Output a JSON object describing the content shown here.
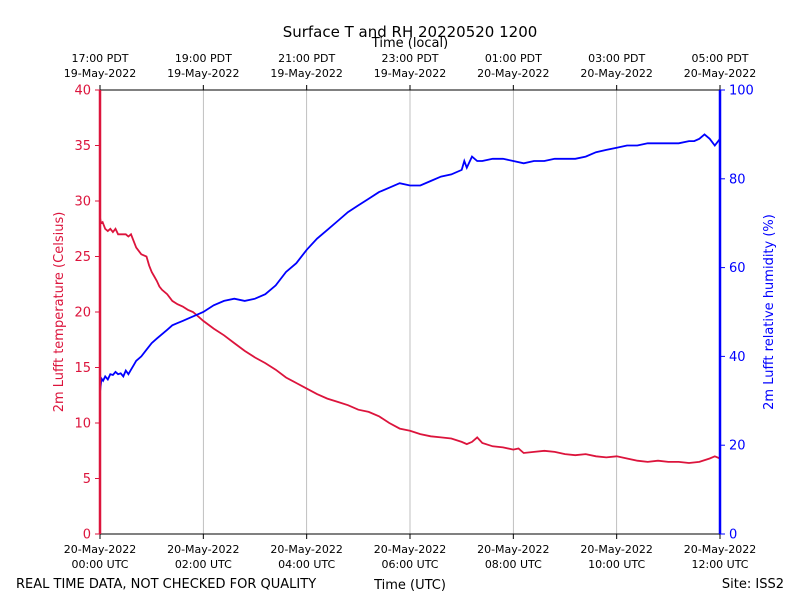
{
  "chart_data": {
    "type": "line",
    "title": "Surface T and RH 20220520 1200",
    "top_axis_label": "Time (local)",
    "bottom_axis_label": "Time (UTC)",
    "left_axis_label": "2m Lufft temperature (Celsius)",
    "right_axis_label": "2m Lufft relative humidity (%)",
    "footer_left": "REAL TIME DATA, NOT CHECKED FOR QUALITY",
    "footer_right": "Site: ISS2",
    "x_range_hours": [
      0,
      12
    ],
    "x_unit": "hours since 20-May-2022 00:00 UTC",
    "ylim_left": [
      0,
      40
    ],
    "ylim_right": [
      0,
      100
    ],
    "grid": "vertical at bottom ticks",
    "bottom_ticks": [
      {
        "x": 0,
        "line1": "20-May-2022",
        "line2": "00:00 UTC"
      },
      {
        "x": 2,
        "line1": "20-May-2022",
        "line2": "02:00 UTC"
      },
      {
        "x": 4,
        "line1": "20-May-2022",
        "line2": "04:00 UTC"
      },
      {
        "x": 6,
        "line1": "20-May-2022",
        "line2": "06:00 UTC"
      },
      {
        "x": 8,
        "line1": "20-May-2022",
        "line2": "08:00 UTC"
      },
      {
        "x": 10,
        "line1": "20-May-2022",
        "line2": "10:00 UTC"
      },
      {
        "x": 12,
        "line1": "20-May-2022",
        "line2": "12:00 UTC"
      }
    ],
    "top_ticks": [
      {
        "x": 0,
        "line1": "17:00 PDT",
        "line2": "19-May-2022"
      },
      {
        "x": 2,
        "line1": "19:00 PDT",
        "line2": "19-May-2022"
      },
      {
        "x": 4,
        "line1": "21:00 PDT",
        "line2": "19-May-2022"
      },
      {
        "x": 6,
        "line1": "23:00 PDT",
        "line2": "19-May-2022"
      },
      {
        "x": 8,
        "line1": "01:00 PDT",
        "line2": "20-May-2022"
      },
      {
        "x": 10,
        "line1": "03:00 PDT",
        "line2": "20-May-2022"
      },
      {
        "x": 12,
        "line1": "05:00 PDT",
        "line2": "20-May-2022"
      }
    ],
    "left_ticks": [
      "0",
      "5",
      "10",
      "15",
      "20",
      "25",
      "30",
      "35",
      "40"
    ],
    "right_ticks": [
      "0",
      "20",
      "40",
      "60",
      "80",
      "100"
    ],
    "colors": {
      "temperature": "#dc143c",
      "humidity": "#0000ff",
      "grid": "#b0b0b0",
      "frame": "#000000"
    },
    "series": [
      {
        "name": "2m Lufft temperature (Celsius)",
        "axis": "left",
        "x": [
          0.0,
          0.02,
          0.05,
          0.1,
          0.15,
          0.2,
          0.25,
          0.3,
          0.35,
          0.4,
          0.5,
          0.55,
          0.6,
          0.7,
          0.8,
          0.9,
          0.95,
          1.0,
          1.05,
          1.1,
          1.15,
          1.2,
          1.3,
          1.4,
          1.5,
          1.6,
          1.7,
          1.8,
          1.9,
          2.0,
          2.2,
          2.4,
          2.6,
          2.8,
          3.0,
          3.2,
          3.4,
          3.6,
          3.8,
          4.0,
          4.2,
          4.4,
          4.6,
          4.8,
          5.0,
          5.2,
          5.4,
          5.6,
          5.8,
          6.0,
          6.2,
          6.4,
          6.6,
          6.8,
          7.0,
          7.1,
          7.2,
          7.3,
          7.4,
          7.6,
          7.8,
          8.0,
          8.1,
          8.2,
          8.4,
          8.6,
          8.8,
          9.0,
          9.2,
          9.4,
          9.6,
          9.8,
          10.0,
          10.2,
          10.4,
          10.6,
          10.8,
          11.0,
          11.2,
          11.4,
          11.6,
          11.8,
          11.9,
          12.0
        ],
        "values": [
          28.5,
          28.0,
          28.1,
          27.5,
          27.3,
          27.5,
          27.2,
          27.5,
          27.0,
          27.0,
          27.0,
          26.8,
          27.0,
          25.8,
          25.2,
          25.0,
          24.2,
          23.6,
          23.2,
          22.8,
          22.3,
          22.0,
          21.6,
          21.0,
          20.7,
          20.5,
          20.2,
          20.0,
          19.6,
          19.2,
          18.5,
          17.9,
          17.2,
          16.5,
          15.9,
          15.4,
          14.8,
          14.1,
          13.6,
          13.1,
          12.6,
          12.2,
          11.9,
          11.6,
          11.2,
          11.0,
          10.6,
          10.0,
          9.5,
          9.3,
          9.0,
          8.8,
          8.7,
          8.6,
          8.3,
          8.1,
          8.3,
          8.7,
          8.2,
          7.9,
          7.8,
          7.6,
          7.7,
          7.3,
          7.4,
          7.5,
          7.4,
          7.2,
          7.1,
          7.2,
          7.0,
          6.9,
          7.0,
          6.8,
          6.6,
          6.5,
          6.6,
          6.5,
          6.5,
          6.4,
          6.5,
          6.8,
          7.0,
          6.8
        ]
      },
      {
        "name": "2m Lufft relative humidity (%)",
        "axis": "right",
        "x": [
          0.0,
          0.03,
          0.06,
          0.1,
          0.15,
          0.2,
          0.25,
          0.3,
          0.35,
          0.4,
          0.45,
          0.5,
          0.55,
          0.6,
          0.65,
          0.7,
          0.8,
          0.9,
          1.0,
          1.1,
          1.2,
          1.3,
          1.4,
          1.5,
          1.6,
          1.7,
          1.8,
          1.9,
          2.0,
          2.2,
          2.4,
          2.6,
          2.8,
          3.0,
          3.2,
          3.4,
          3.6,
          3.8,
          4.0,
          4.2,
          4.4,
          4.6,
          4.8,
          5.0,
          5.2,
          5.4,
          5.6,
          5.8,
          6.0,
          6.2,
          6.4,
          6.6,
          6.8,
          7.0,
          7.05,
          7.1,
          7.2,
          7.3,
          7.4,
          7.6,
          7.8,
          8.0,
          8.2,
          8.4,
          8.6,
          8.8,
          9.0,
          9.2,
          9.4,
          9.6,
          9.8,
          10.0,
          10.2,
          10.4,
          10.6,
          10.8,
          11.0,
          11.2,
          11.4,
          11.5,
          11.6,
          11.7,
          11.8,
          11.9,
          12.0
        ],
        "values": [
          32.0,
          35.0,
          34.5,
          35.5,
          34.8,
          36.0,
          35.8,
          36.5,
          36.0,
          36.2,
          35.5,
          36.8,
          36.0,
          37.0,
          38.0,
          39.0,
          40.0,
          41.5,
          43.0,
          44.0,
          45.0,
          46.0,
          47.0,
          47.5,
          48.0,
          48.5,
          49.0,
          49.5,
          50.0,
          51.5,
          52.5,
          53.0,
          52.5,
          53.0,
          54.0,
          56.0,
          59.0,
          61.0,
          64.0,
          66.5,
          68.5,
          70.5,
          72.5,
          74.0,
          75.5,
          77.0,
          78.0,
          79.0,
          78.5,
          78.5,
          79.5,
          80.5,
          81.0,
          82.0,
          84.0,
          82.5,
          85.0,
          84.0,
          84.0,
          84.5,
          84.5,
          84.0,
          83.5,
          84.0,
          84.0,
          84.5,
          84.5,
          84.5,
          85.0,
          86.0,
          86.5,
          87.0,
          87.5,
          87.5,
          88.0,
          88.0,
          88.0,
          88.0,
          88.5,
          88.5,
          89.0,
          90.0,
          89.0,
          87.5,
          89.0
        ]
      }
    ]
  }
}
